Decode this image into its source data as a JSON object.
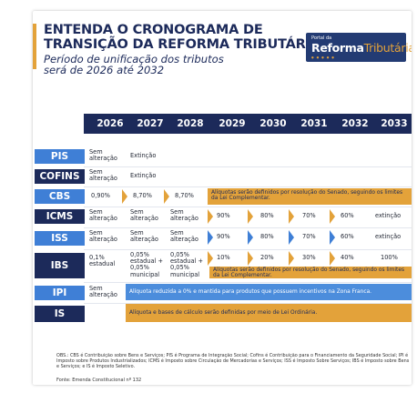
{
  "header": {
    "title_line1": "ENTENDA O CRONOGRAMA DE",
    "title_line2": "TRANSIÇÃO DA REFORMA TRIBUTÁRIA",
    "subtitle_line1": "Período de unificação dos tributos",
    "subtitle_line2": "será de 2026 até 2032"
  },
  "logo": {
    "small": "Portal da",
    "main": "Reforma",
    "rest": "Tributária",
    "dots": "● ● ● ● ●"
  },
  "years": [
    "2026",
    "2027",
    "2028",
    "2029",
    "2030",
    "2031",
    "2032",
    "2033"
  ],
  "rows": {
    "pis": {
      "label": "PIS",
      "y2026": "Sem alteração",
      "y2027": "Extinção"
    },
    "cofins": {
      "label": "COFINS",
      "y2026": "Sem alteração",
      "y2027": "Extinção"
    },
    "cbs": {
      "label": "CBS",
      "y2026": "0,90%",
      "y2027": "8,70%",
      "y2028": "8,70%",
      "band": "Alíquotas serão definidos por resolução do Senado, seguindo os limites da Lei Complementar."
    },
    "icms": {
      "label": "ICMS",
      "y2026": "Sem alteração",
      "y2027": "Sem alteração",
      "y2028": "Sem alteração",
      "y2029": "90%",
      "y2030": "80%",
      "y2031": "70%",
      "y2032": "60%",
      "y2033": "extinção"
    },
    "iss": {
      "label": "ISS",
      "y2026": "Sem alteração",
      "y2027": "Sem alteração",
      "y2028": "Sem alteração",
      "y2029": "90%",
      "y2030": "80%",
      "y2031": "70%",
      "y2032": "60%",
      "y2033": "extinção"
    },
    "ibs": {
      "label": "IBS",
      "y2026": "0,1% estadual",
      "y2027": "0,05% estadual + 0,05% municipal",
      "y2028": "0,05% estadual + 0,05% municipal",
      "y2029": "10%",
      "y2030": "20%",
      "y2031": "30%",
      "y2032": "40%",
      "y2033": "100%",
      "band": "Alíquotas serão definidos por resolução do Senado, seguindo os limites da Lei Complementar."
    },
    "ipi": {
      "label": "IPI",
      "y2026": "Sem alteração",
      "band": "Alíquota reduzida a 0% e mantida para produtos que possuem incentivos na Zona Franca."
    },
    "is": {
      "label": "IS",
      "band": "Alíquota e bases de cálculo serão definidas por meio de Lei Ordinária."
    }
  },
  "notes": "OBS.: CBS é Contribuição sobre Bens e Serviços; PIS é Programa de Integração Social; Cofins é Contribuição para o Financiamento da Seguridade Social; IPI é Imposto sobre Produtos Industrializados; ICMS é Imposto sobre Circulação de Mercadorias e Serviços; ISS é Imposto Sobre Serviços; IBS é Imposto sobre Bens e Serviços; e IS é Imposto Seletivo.",
  "source": "Fonte: Emenda Constitucional nº 132",
  "colors": {
    "navy": "#1c2a5a",
    "orange": "#e3a23a",
    "blue": "#3f7fd6"
  }
}
